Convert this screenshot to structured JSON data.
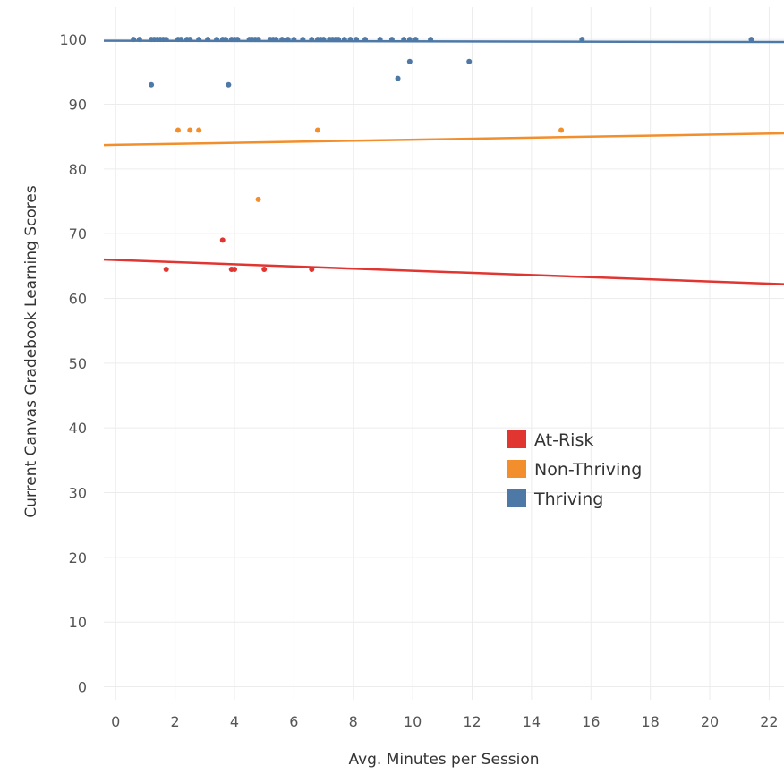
{
  "chart_data": {
    "type": "scatter",
    "xlabel": "Avg. Minutes per Session",
    "ylabel": "Current Canvas Gradebook Learning Scores",
    "xlim": [
      -0.4,
      22.5
    ],
    "ylim": [
      -2,
      105
    ],
    "x_ticks": [
      "0",
      "2",
      "4",
      "6",
      "8",
      "10",
      "12",
      "14",
      "16",
      "18",
      "20",
      "22"
    ],
    "y_ticks": [
      "0",
      "10",
      "20",
      "30",
      "40",
      "50",
      "60",
      "70",
      "80",
      "90",
      "100"
    ],
    "grid": true,
    "legend_position": "center-right",
    "series": [
      {
        "name": "At-Risk",
        "color": "#e03531",
        "points": [
          [
            1.7,
            64.5
          ],
          [
            3.6,
            69
          ],
          [
            3.9,
            64.5
          ],
          [
            4.0,
            64.5
          ],
          [
            5.0,
            64.5
          ],
          [
            6.6,
            64.5
          ]
        ],
        "trend": [
          [
            -0.4,
            66
          ],
          [
            22.5,
            62.2
          ]
        ]
      },
      {
        "name": "Non-Thriving",
        "color": "#f28e2b",
        "points": [
          [
            2.1,
            86
          ],
          [
            2.5,
            86
          ],
          [
            2.8,
            86
          ],
          [
            4.8,
            75.3
          ],
          [
            6.8,
            86
          ],
          [
            15.0,
            86
          ]
        ],
        "trend": [
          [
            -0.4,
            83.7
          ],
          [
            22.5,
            85.5
          ]
        ]
      },
      {
        "name": "Thriving",
        "color": "#4e79a7",
        "points": [
          [
            0.6,
            100
          ],
          [
            0.8,
            100
          ],
          [
            1.2,
            100
          ],
          [
            1.3,
            100
          ],
          [
            1.4,
            100
          ],
          [
            1.5,
            100
          ],
          [
            1.6,
            100
          ],
          [
            1.7,
            100
          ],
          [
            2.1,
            100
          ],
          [
            2.2,
            100
          ],
          [
            2.4,
            100
          ],
          [
            2.5,
            100
          ],
          [
            2.8,
            100
          ],
          [
            3.1,
            100
          ],
          [
            3.4,
            100
          ],
          [
            3.6,
            100
          ],
          [
            3.7,
            100
          ],
          [
            3.9,
            100
          ],
          [
            4.0,
            100
          ],
          [
            4.1,
            100
          ],
          [
            4.5,
            100
          ],
          [
            4.6,
            100
          ],
          [
            4.7,
            100
          ],
          [
            4.8,
            100
          ],
          [
            5.2,
            100
          ],
          [
            5.3,
            100
          ],
          [
            5.4,
            100
          ],
          [
            5.6,
            100
          ],
          [
            5.8,
            100
          ],
          [
            6.0,
            100
          ],
          [
            6.3,
            100
          ],
          [
            6.6,
            100
          ],
          [
            6.8,
            100
          ],
          [
            6.9,
            100
          ],
          [
            7.0,
            100
          ],
          [
            7.2,
            100
          ],
          [
            7.3,
            100
          ],
          [
            7.4,
            100
          ],
          [
            7.5,
            100
          ],
          [
            7.7,
            100
          ],
          [
            7.9,
            100
          ],
          [
            8.1,
            100
          ],
          [
            8.4,
            100
          ],
          [
            8.9,
            100
          ],
          [
            9.3,
            100
          ],
          [
            9.7,
            100
          ],
          [
            9.9,
            100
          ],
          [
            10.1,
            100
          ],
          [
            10.6,
            100
          ],
          [
            15.7,
            100
          ],
          [
            21.4,
            100
          ],
          [
            1.2,
            93
          ],
          [
            3.8,
            93
          ],
          [
            9.5,
            94
          ],
          [
            9.9,
            96.6
          ],
          [
            11.9,
            96.6
          ]
        ],
        "trend": [
          [
            -0.4,
            99.8
          ],
          [
            22.5,
            99.6
          ]
        ]
      }
    ]
  }
}
